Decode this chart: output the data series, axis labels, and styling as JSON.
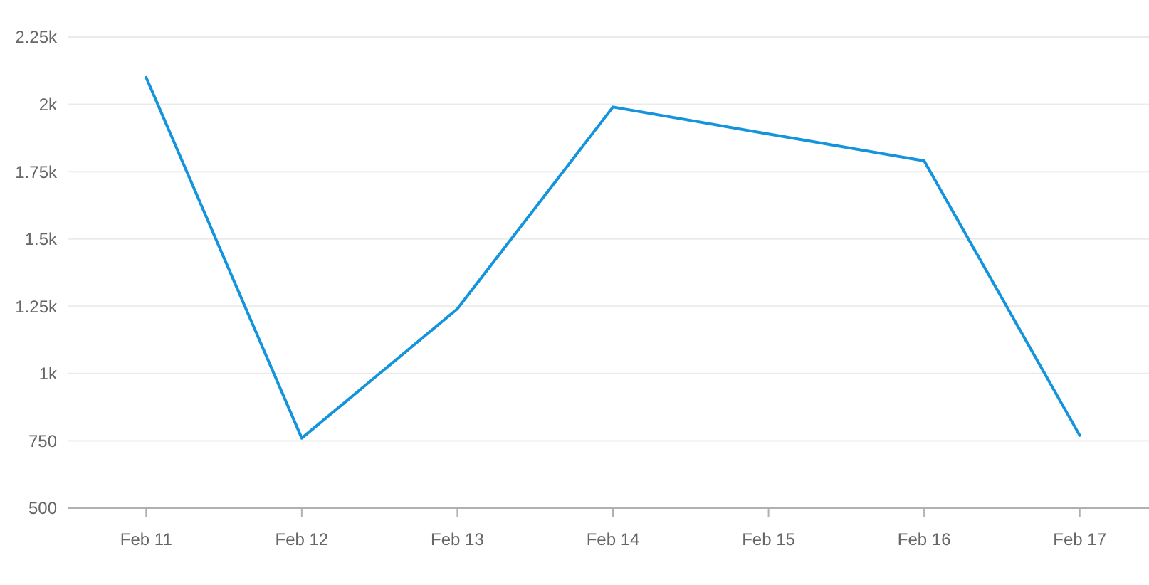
{
  "chart_data": {
    "type": "line",
    "categories": [
      "Feb 11",
      "Feb 12",
      "Feb 13",
      "Feb 14",
      "Feb 15",
      "Feb 16",
      "Feb 17"
    ],
    "series": [
      {
        "color": "#1394dc",
        "values": [
          2100,
          760,
          1240,
          1990,
          1890,
          1790,
          770
        ]
      }
    ],
    "ylim": [
      500,
      2250
    ],
    "yticks": [
      500,
      750,
      {
        "value": 1000,
        "label": "1k"
      },
      {
        "value": 1250,
        "label": "1.25k"
      },
      {
        "value": 1500,
        "label": "1.5k"
      },
      {
        "value": 1750,
        "label": "1.75k"
      },
      {
        "value": 2000,
        "label": "2k"
      },
      {
        "value": 2250,
        "label": "2.25k"
      }
    ],
    "grid": "y",
    "marker": "none",
    "line_style": "solid"
  }
}
